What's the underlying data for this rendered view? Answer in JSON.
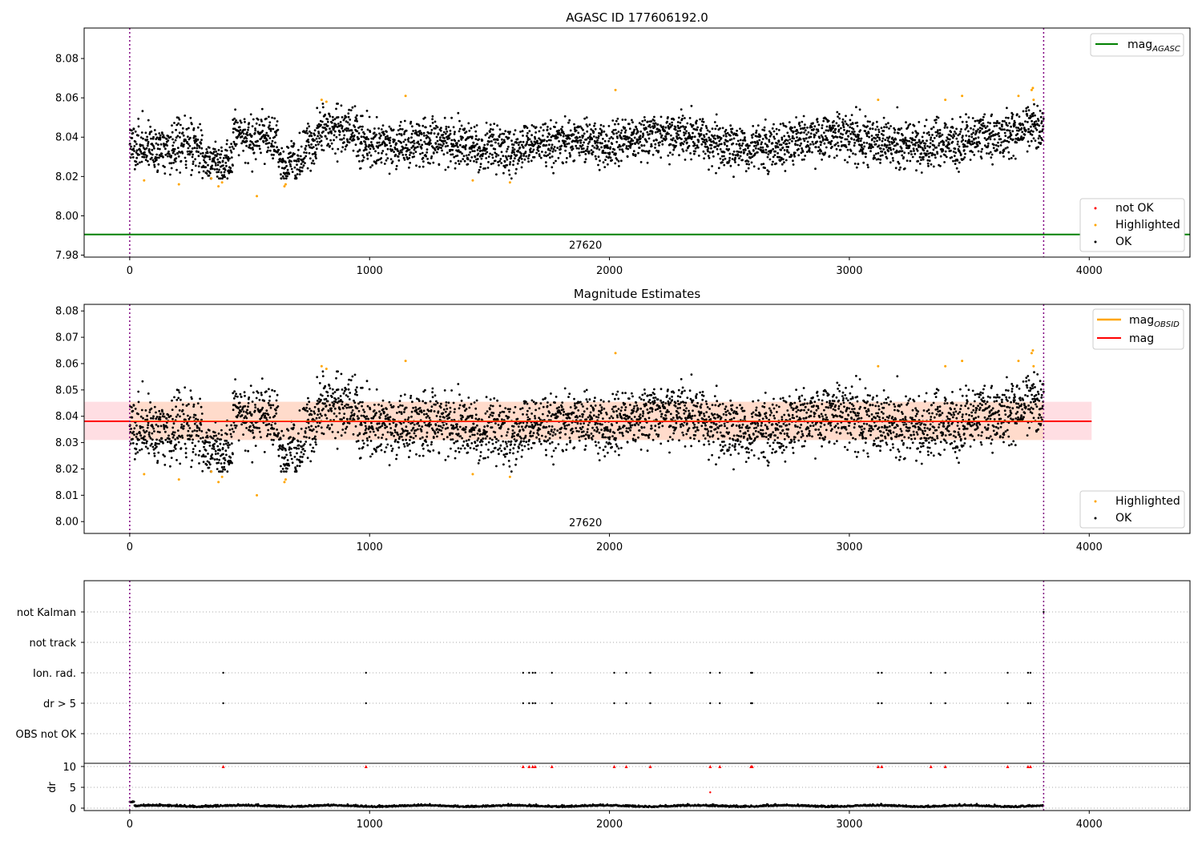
{
  "charts": [
    {
      "chart_type": "scatter",
      "title": "AGASC ID 177606192.0",
      "xlim": [
        -190,
        4420
      ],
      "ylim": [
        7.979,
        8.0955
      ],
      "xticks": [
        "0",
        "1000",
        "2000",
        "3000",
        "4000"
      ],
      "yticks": [
        "7.98",
        "8.00",
        "8.02",
        "8.04",
        "8.06",
        "8.08"
      ],
      "vlines": [
        0,
        3810
      ],
      "obsid_label": {
        "text": "27620",
        "x": 1900,
        "y": 7.985
      },
      "hline": {
        "name": "mag_AGASC",
        "value": 7.9905,
        "color": "#008000",
        "x_range": [
          -190,
          4420
        ]
      },
      "legend_top": [
        {
          "label": "mag",
          "sub": "AGASC",
          "color": "#008000"
        }
      ],
      "legend_bottom": [
        {
          "label": "not OK",
          "color": "#ff0000"
        },
        {
          "label": "Highlighted",
          "color": "#ffa500"
        },
        {
          "label": "OK",
          "color": "#000000"
        }
      ]
    },
    {
      "chart_type": "scatter",
      "title": "Magnitude Estimates",
      "xlim": [
        -190,
        4420
      ],
      "ylim": [
        7.9955,
        8.0825
      ],
      "xticks": [
        "0",
        "1000",
        "2000",
        "3000",
        "4000"
      ],
      "yticks": [
        "8.00",
        "8.01",
        "8.02",
        "8.03",
        "8.04",
        "8.05",
        "8.06",
        "8.07",
        "8.08"
      ],
      "vlines": [
        0,
        3810
      ],
      "obsid_label": {
        "text": "27620",
        "x": 1900,
        "y": 7.9995
      },
      "band": {
        "x_range": [
          -190,
          4010
        ],
        "y_range": [
          8.031,
          8.0455
        ],
        "color": "#ffb6c1"
      },
      "band_obsid": {
        "x_range": [
          0,
          3810
        ],
        "y_range": [
          8.031,
          8.0455
        ],
        "color": "#ffd8b8"
      },
      "hline": {
        "name": "mag",
        "value": 8.0381,
        "color": "#ff0000",
        "x_range": [
          -190,
          4010
        ]
      },
      "hline_obsid": {
        "name": "mag_OBSID",
        "value": 8.0381,
        "color": "#ffa500",
        "x_range": [
          0,
          3810
        ]
      },
      "legend_top": [
        {
          "label": "mag",
          "sub": "OBSID",
          "color": "#ffa500"
        },
        {
          "label": "mag",
          "sub": "",
          "color": "#ff0000"
        }
      ],
      "legend_bottom": [
        {
          "label": "Highlighted",
          "color": "#ffa500"
        },
        {
          "label": "OK",
          "color": "#000000"
        }
      ]
    },
    {
      "chart_type": "scatter",
      "xlim": [
        -190,
        4420
      ],
      "xticks": [
        "0",
        "1000",
        "2000",
        "3000",
        "4000"
      ],
      "flag_labels": [
        "not Kalman",
        "not track",
        "Ion. rad.",
        "dr > 5",
        "OBS not OK"
      ],
      "dr_ylabel": "dr",
      "dr_ylim": [
        -1,
        10.5
      ],
      "dr_yticks": [
        "0",
        "5",
        "10"
      ],
      "vlines": [
        0,
        3810
      ],
      "flag_events": [
        390,
        985,
        1640,
        1665,
        1680,
        1690,
        1760,
        2020,
        2070,
        2170,
        2420,
        2460,
        2590,
        2595,
        3120,
        3135,
        3340,
        3400,
        3660,
        3745,
        3755
      ],
      "dr_outliers": [
        {
          "x": 2420,
          "y": 3.8
        }
      ]
    }
  ],
  "chart_data": [
    {
      "type": "scatter",
      "title": "AGASC ID 177606192.0",
      "xlim": [
        -190,
        4420
      ],
      "ylim": [
        7.979,
        8.0955
      ],
      "series": [
        {
          "name": "OK",
          "color": "#000000",
          "n_points": 3800,
          "x_range": [
            0,
            3810
          ],
          "y_mean": 8.038,
          "y_sigma": 0.0075
        },
        {
          "name": "Highlighted",
          "color": "#ffa500",
          "x": [
            60,
            205,
            340,
            370,
            385,
            530,
            645,
            650,
            800,
            820,
            1150,
            1430,
            1585,
            2025,
            3120,
            3400,
            3470,
            3705,
            3760,
            3765,
            3768
          ],
          "y": [
            8.018,
            8.016,
            8.019,
            8.015,
            8.017,
            8.01,
            8.015,
            8.016,
            8.059,
            8.058,
            8.061,
            8.018,
            8.017,
            8.064,
            8.059,
            8.059,
            8.061,
            8.061,
            8.064,
            8.065,
            8.059
          ]
        },
        {
          "name": "not OK",
          "color": "#ff0000",
          "x": [],
          "y": []
        }
      ],
      "hline": {
        "name": "mag_AGASC",
        "y": 7.9905
      }
    },
    {
      "type": "scatter",
      "title": "Magnitude Estimates",
      "xlim": [
        -190,
        4420
      ],
      "ylim": [
        7.9955,
        8.0825
      ],
      "series": [
        {
          "name": "OK",
          "color": "#000000"
        },
        {
          "name": "Highlighted",
          "color": "#ffa500"
        }
      ],
      "hline": [
        {
          "name": "mag_OBSID",
          "y": 8.0381
        },
        {
          "name": "mag",
          "y": 8.0381
        }
      ]
    },
    {
      "type": "scatter",
      "xlim": [
        -190,
        4420
      ],
      "categories": [
        "not Kalman",
        "not track",
        "Ion. rad.",
        "dr > 5",
        "OBS not OK"
      ],
      "dr_ylim": [
        -1,
        10.5
      ]
    }
  ]
}
